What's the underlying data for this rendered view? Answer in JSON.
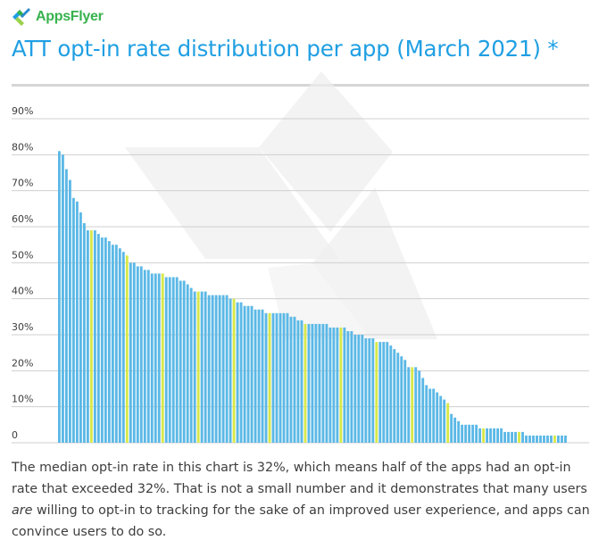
{
  "brand": {
    "name": "AppsFlyer",
    "color": "#37b24d",
    "accent": "#1f9fe3"
  },
  "title": "ATT opt-in rate distribution per app (March 2021) *",
  "description": {
    "before_emphasis": "The median opt-in rate in this chart is 32%, which means half of the apps had an opt-in rate that exceeded 32%. That is not a small number and it demonstrates that many users ",
    "emphasis": "are",
    "after_emphasis": " willing to opt-in to tracking for the sake of an improved user experience, and apps can convince users to do so."
  },
  "chart_data": {
    "type": "bar",
    "title": "",
    "xlabel": "",
    "ylabel": "",
    "ylim": [
      0,
      90
    ],
    "y_ticks": [
      {
        "value": 0,
        "label": "0"
      },
      {
        "value": 10,
        "label": "10%"
      },
      {
        "value": 20,
        "label": "20%"
      },
      {
        "value": 30,
        "label": "30%"
      },
      {
        "value": 40,
        "label": "40%"
      },
      {
        "value": 50,
        "label": "50%"
      },
      {
        "value": 60,
        "label": "60%"
      },
      {
        "value": 70,
        "label": "70%"
      },
      {
        "value": 80,
        "label": "80%"
      },
      {
        "value": 90,
        "label": "90%"
      }
    ],
    "grid": true,
    "sorted": "descending",
    "colors": {
      "bar": "#5bb8e6",
      "highlight": "#d7e84a",
      "grid": "#cfcfcf"
    },
    "highlight_every": 10,
    "values": [
      81,
      80,
      76,
      73,
      68,
      67,
      64,
      61,
      59,
      59,
      59,
      58,
      57,
      57,
      56,
      55,
      55,
      54,
      53,
      52,
      50,
      50,
      49,
      49,
      48,
      48,
      47,
      47,
      47,
      47,
      46,
      46,
      46,
      46,
      45,
      45,
      44,
      43,
      42,
      42,
      42,
      42,
      41,
      41,
      41,
      41,
      41,
      41,
      40,
      40,
      39,
      39,
      38,
      38,
      38,
      37,
      37,
      37,
      36,
      36,
      36,
      36,
      36,
      36,
      36,
      35,
      35,
      34,
      34,
      33,
      33,
      33,
      33,
      33,
      33,
      33,
      32,
      32,
      32,
      32,
      32,
      31,
      31,
      30,
      30,
      30,
      29,
      29,
      29,
      28,
      28,
      28,
      28,
      27,
      26,
      25,
      24,
      23,
      21,
      21,
      21,
      20,
      18,
      16,
      15,
      15,
      14,
      13,
      12,
      11,
      8,
      7,
      6,
      5,
      5,
      5,
      5,
      5,
      4,
      4,
      4,
      4,
      4,
      4,
      4,
      3,
      3,
      3,
      3,
      3,
      3,
      2,
      2,
      2,
      2,
      2,
      2,
      2,
      2,
      2,
      2,
      2,
      2
    ]
  }
}
